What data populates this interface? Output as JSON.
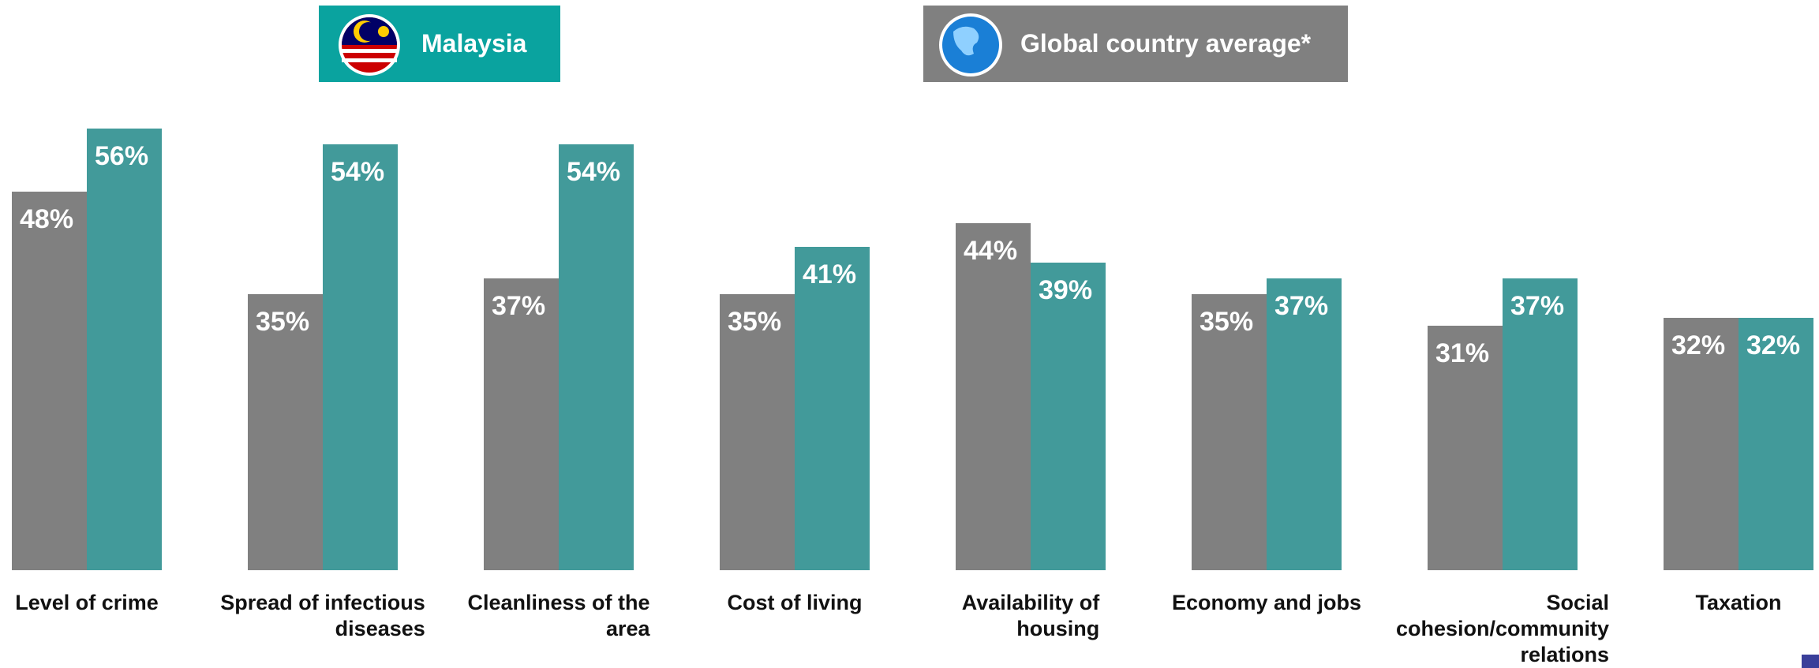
{
  "chart_data": {
    "type": "bar",
    "categories": [
      "Level of crime",
      "Spread of infectious\ndiseases",
      "Cleanliness of the\narea",
      "Cost of living",
      "Availability of\nhousing",
      "Economy and jobs",
      "Social\ncohesion/community\nrelations",
      "Taxation"
    ],
    "series": [
      {
        "name": "Global country average*",
        "color": "#808080",
        "values": [
          48,
          35,
          37,
          35,
          44,
          35,
          31,
          32
        ],
        "value_labels": [
          "48%",
          "35%",
          "37%",
          "35%",
          "44%",
          "35%",
          "31%",
          "32%"
        ]
      },
      {
        "name": "Malaysia",
        "color": "#429a9a",
        "values": [
          56,
          54,
          54,
          41,
          39,
          37,
          37,
          32
        ],
        "value_labels": [
          "56%",
          "54%",
          "54%",
          "41%",
          "39%",
          "37%",
          "37%",
          "32%"
        ]
      }
    ],
    "ylim": [
      0,
      56
    ]
  }
}
